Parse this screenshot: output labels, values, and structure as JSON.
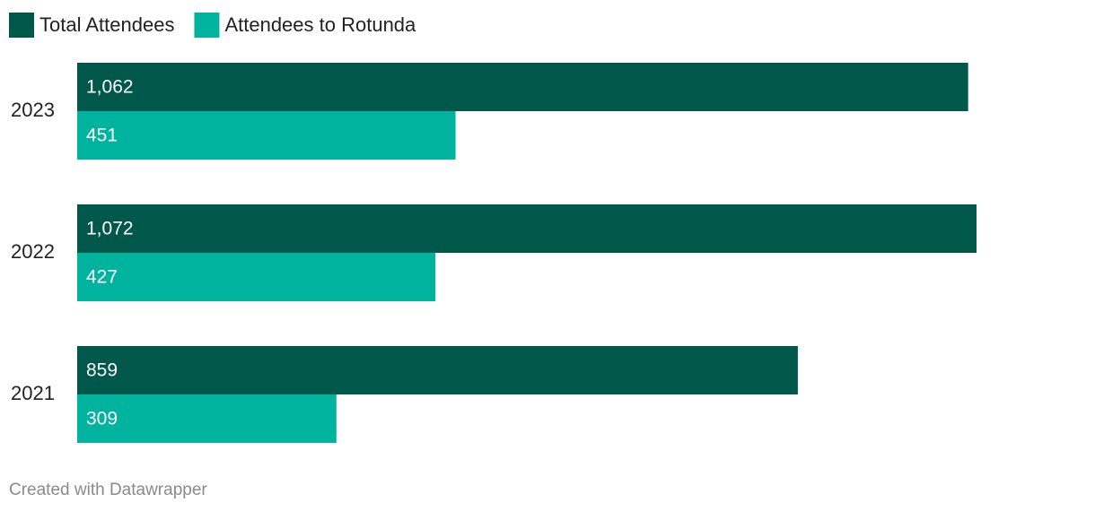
{
  "chart_data": {
    "type": "bar",
    "orientation": "horizontal",
    "categories": [
      "2023",
      "2022",
      "2021"
    ],
    "series": [
      {
        "name": "Total Attendees",
        "color": "#00584a",
        "values": [
          1062,
          1072,
          859
        ],
        "value_labels": [
          "1,062",
          "1,072",
          "859"
        ]
      },
      {
        "name": "Attendees to Rotunda",
        "color": "#00b39e",
        "values": [
          451,
          427,
          309
        ]
      }
    ],
    "credit": "Created with Datawrapper"
  }
}
